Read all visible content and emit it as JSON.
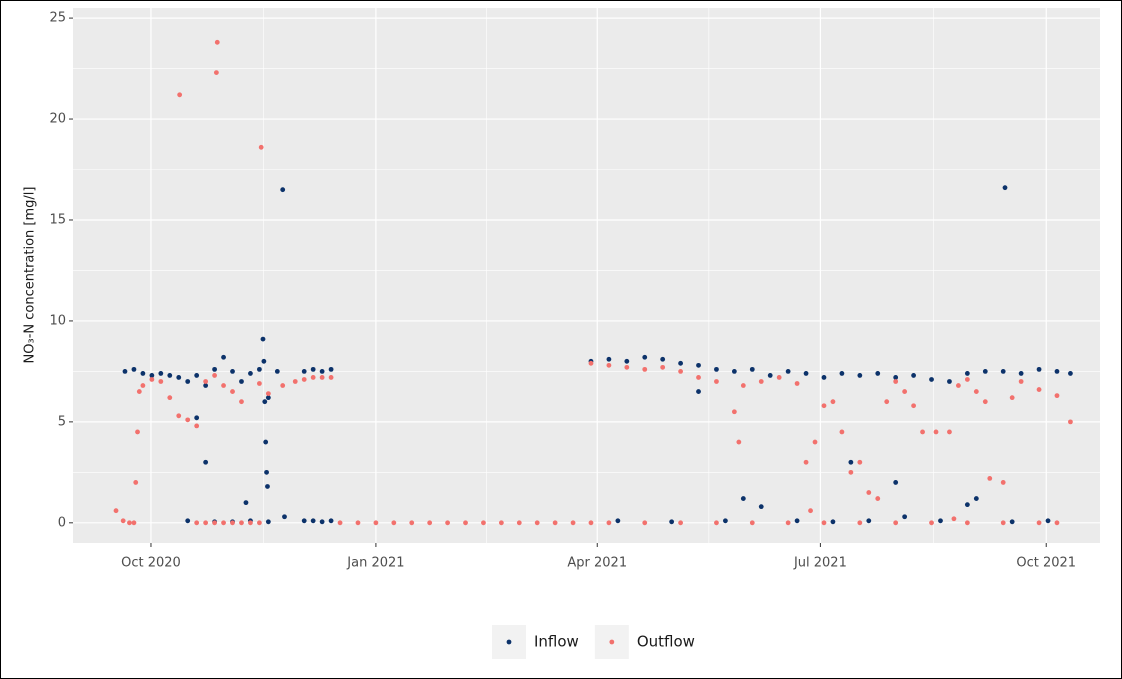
{
  "chart_data": {
    "type": "scatter",
    "y_label": "NO₃-N concentration [mg/l]",
    "xlim": [
      2020.662,
      2021.808
    ],
    "ylim": [
      -1,
      25.5
    ],
    "xticks": [
      {
        "value": 2020.749,
        "label": "Oct 2020"
      },
      {
        "value": 2021.0,
        "label": "Jan 2021"
      },
      {
        "value": 2021.247,
        "label": "Apr 2021"
      },
      {
        "value": 2021.496,
        "label": "Jul 2021"
      },
      {
        "value": 2021.748,
        "label": "Oct 2021"
      }
    ],
    "yticks": [
      0,
      5,
      10,
      15,
      20,
      25
    ],
    "grid": true,
    "legend": "bottom",
    "series": [
      {
        "name": "Inflow",
        "color": "#0c326a",
        "x": [
          2020.72,
          2020.73,
          2020.74,
          2020.75,
          2020.76,
          2020.77,
          2020.78,
          2020.79,
          2020.8,
          2020.81,
          2020.82,
          2020.83,
          2020.84,
          2020.85,
          2020.79,
          2020.81,
          2020.82,
          2020.84,
          2020.86,
          2020.88,
          2020.8,
          2020.855,
          2020.86,
          2020.87,
          2020.88,
          2020.89,
          2020.874,
          2020.875,
          2020.876,
          2020.877,
          2020.878,
          2020.879,
          2020.896,
          2020.898,
          2020.92,
          2020.93,
          2020.94,
          2020.95,
          2020.92,
          2020.93,
          2020.94,
          2020.95,
          2021.24,
          2021.26,
          2021.28,
          2021.3,
          2021.32,
          2021.34,
          2021.36,
          2021.38,
          2021.4,
          2021.42,
          2021.44,
          2021.46,
          2021.48,
          2021.5,
          2021.52,
          2021.54,
          2021.56,
          2021.58,
          2021.6,
          2021.62,
          2021.64,
          2021.66,
          2021.68,
          2021.7,
          2021.72,
          2021.74,
          2021.76,
          2021.775,
          2021.27,
          2021.33,
          2021.39,
          2021.43,
          2021.47,
          2021.51,
          2021.55,
          2021.59,
          2021.63,
          2021.67,
          2021.71,
          2021.75,
          2021.36,
          2021.41,
          2021.53,
          2021.58,
          2021.66,
          2021.702
        ],
        "values": [
          7.5,
          7.6,
          7.4,
          7.3,
          7.4,
          7.3,
          7.2,
          7.0,
          7.3,
          6.8,
          7.6,
          8.2,
          7.5,
          7.0,
          0.1,
          3.0,
          0.05,
          0.05,
          0.1,
          0.05,
          5.2,
          1.0,
          7.4,
          7.6,
          6.2,
          7.5,
          9.1,
          8.0,
          6.0,
          4.0,
          2.5,
          1.8,
          16.5,
          0.3,
          7.5,
          7.6,
          7.5,
          7.6,
          0.1,
          0.1,
          0.05,
          0.1,
          8.0,
          8.1,
          8.0,
          8.2,
          8.1,
          7.9,
          7.8,
          7.6,
          7.5,
          7.6,
          7.3,
          7.5,
          7.4,
          7.2,
          7.4,
          7.3,
          7.4,
          7.2,
          7.3,
          7.1,
          7.0,
          7.4,
          7.5,
          7.5,
          7.4,
          7.6,
          7.5,
          7.4,
          0.1,
          0.05,
          0.1,
          0.8,
          0.1,
          0.05,
          0.1,
          0.3,
          0.1,
          1.2,
          0.05,
          0.1,
          6.5,
          1.2,
          3.0,
          2.0,
          0.9,
          16.6
        ]
      },
      {
        "name": "Outflow",
        "color": "#f2716d",
        "x": [
          2020.71,
          2020.718,
          2020.725,
          2020.73,
          2020.732,
          2020.734,
          2020.736,
          2020.74,
          2020.75,
          2020.76,
          2020.77,
          2020.78,
          2020.79,
          2020.8,
          2020.781,
          2020.823,
          2020.822,
          2020.872,
          2020.81,
          2020.82,
          2020.83,
          2020.84,
          2020.85,
          2020.8,
          2020.81,
          2020.82,
          2020.83,
          2020.84,
          2020.85,
          2020.86,
          2020.87,
          2020.87,
          2020.88,
          2020.896,
          2020.91,
          2020.92,
          2020.93,
          2020.94,
          2020.95,
          2020.96,
          2020.98,
          2021.0,
          2021.02,
          2021.04,
          2021.06,
          2021.08,
          2021.1,
          2021.12,
          2021.14,
          2021.16,
          2021.18,
          2021.2,
          2021.22,
          2021.24,
          2021.24,
          2021.26,
          2021.28,
          2021.3,
          2021.32,
          2021.34,
          2021.36,
          2021.38,
          2021.4,
          2021.405,
          2021.41,
          2021.43,
          2021.45,
          2021.47,
          2021.48,
          2021.485,
          2021.49,
          2021.5,
          2021.51,
          2021.52,
          2021.53,
          2021.54,
          2021.55,
          2021.56,
          2021.57,
          2021.58,
          2021.59,
          2021.6,
          2021.61,
          2021.625,
          2021.64,
          2021.645,
          2021.65,
          2021.66,
          2021.67,
          2021.68,
          2021.685,
          2021.7,
          2021.71,
          2021.72,
          2021.74,
          2021.76,
          2021.775,
          2021.26,
          2021.3,
          2021.34,
          2021.38,
          2021.42,
          2021.46,
          2021.5,
          2021.54,
          2021.58,
          2021.62,
          2021.66,
          2021.7,
          2021.74,
          2021.76
        ],
        "values": [
          0.6,
          0.1,
          0.0,
          0.0,
          2.0,
          4.5,
          6.5,
          6.8,
          7.1,
          7.0,
          6.2,
          5.3,
          5.1,
          4.8,
          21.2,
          23.8,
          22.3,
          18.6,
          7.0,
          7.3,
          6.8,
          6.5,
          6.0,
          0,
          0,
          0,
          0,
          0,
          0,
          0,
          0,
          6.9,
          6.4,
          6.8,
          7.0,
          7.1,
          7.2,
          7.2,
          7.2,
          0,
          0,
          0,
          0,
          0,
          0,
          0,
          0,
          0,
          0,
          0,
          0,
          0,
          0,
          0,
          7.9,
          7.8,
          7.7,
          7.6,
          7.7,
          7.5,
          7.2,
          7.0,
          5.5,
          4.0,
          6.8,
          7.0,
          7.2,
          6.9,
          3.0,
          0.6,
          4.0,
          5.8,
          6.0,
          4.5,
          2.5,
          3.0,
          1.5,
          1.2,
          6.0,
          7.0,
          6.5,
          5.8,
          4.5,
          4.5,
          4.5,
          0.2,
          6.8,
          7.1,
          6.5,
          6.0,
          2.2,
          2.0,
          6.2,
          7.0,
          6.6,
          6.3,
          5.0,
          0,
          0,
          0,
          0,
          0,
          0,
          0,
          0,
          0,
          0,
          0,
          0,
          0,
          0
        ]
      }
    ]
  }
}
